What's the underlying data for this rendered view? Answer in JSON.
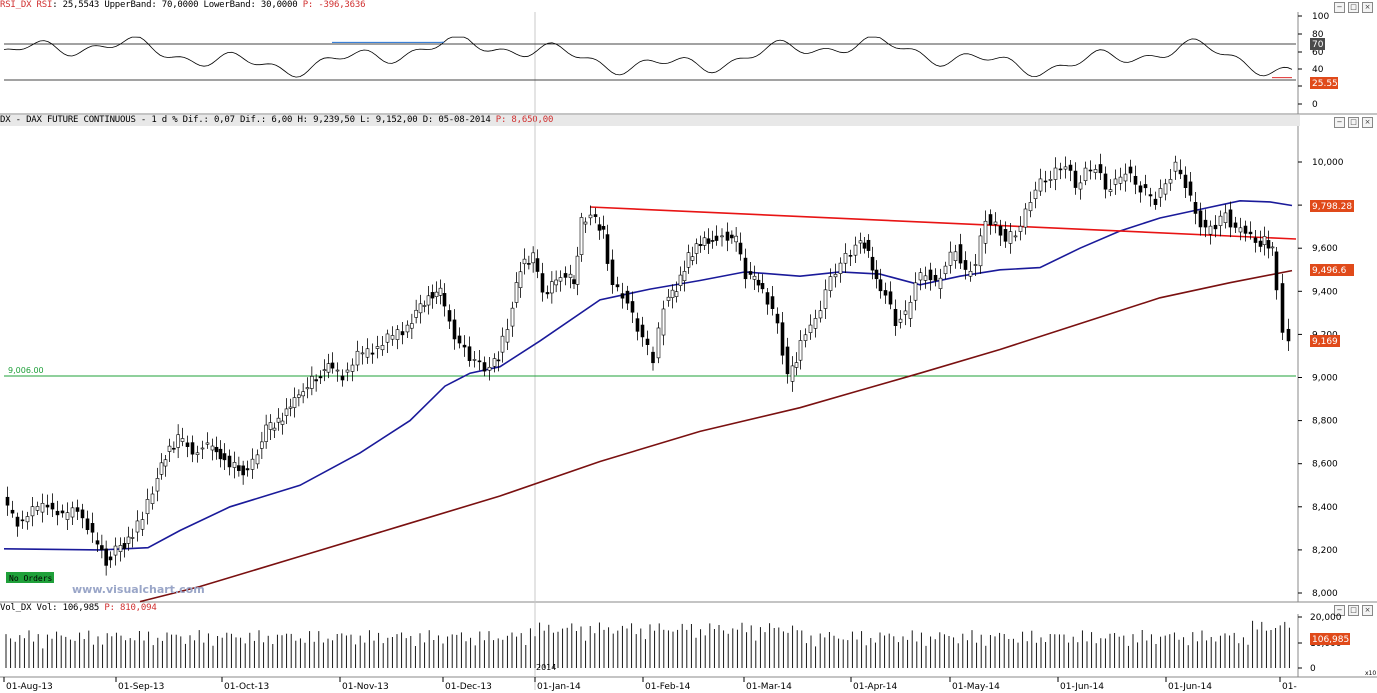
{
  "rsi_panel": {
    "header_name": "RSI_DX RSI",
    "header_values": ": 25,5543 UpperBand: 70,0000 LowerBand: 30,0000",
    "header_p": "P: -396,3636",
    "current_value_label": "25.55",
    "upper_band_label": "70"
  },
  "price_panel": {
    "header": "DX - DAX FUTURE CONTINUOUS -  1 d % Dif.: 0,07 Dif.: 6,00 H: 9,239,50 L: 9,152,00 D: 05-08-2014",
    "header_p": "P: 8,650,00",
    "support_label": "9,006.00",
    "no_orders": "No Orders",
    "watermark": "www.visualchart.com",
    "label_blue": "9,798.28",
    "label_dark": "9,496.6",
    "label_last": "9,169"
  },
  "volume_panel": {
    "header": "Vol_DX Vol: 106,985",
    "header_p": "P: 810,094",
    "current_value_label": "106,985",
    "year_marker": "2014",
    "multiplier": "x10"
  },
  "chart_data": [
    {
      "type": "line",
      "name": "RSI",
      "yticks": [
        "100",
        "80",
        "60",
        "40",
        "20",
        "0"
      ],
      "ylim": [
        0,
        100
      ],
      "upper_band": 70,
      "lower_band": 30,
      "last": 25.55
    },
    {
      "type": "candlestick",
      "name": "DX - DAX FUTURE CONTINUOUS",
      "yticks": [
        "10,000",
        "9,800",
        "9,600",
        "9,400",
        "9,200",
        "9,000",
        "8,800",
        "8,600",
        "8,400",
        "8,200",
        "8,000"
      ],
      "ylim": [
        7980,
        10060
      ],
      "support": 9006,
      "moving_averages_last": [
        9798.28,
        9496.6
      ],
      "last": 9169,
      "high": 9239.5,
      "low": 9152.0
    },
    {
      "type": "bar",
      "name": "Vol_DX",
      "yticks": [
        "20,000",
        "10,000",
        "0"
      ],
      "last": 106985
    }
  ],
  "x_axis": {
    "dates": [
      "01-Aug-13",
      "01-Sep-13",
      "01-Oct-13",
      "01-Nov-13",
      "01-Dec-13",
      "01-Jan-14",
      "01-Feb-14",
      "01-Mar-14",
      "01-Apr-14",
      "01-May-14",
      "01-Jun-14",
      "01-Jun-14",
      "01-"
    ]
  },
  "colors": {
    "rsi_line": "#000000",
    "rsi_overbought": "#1f6fd1",
    "rsi_oversold": "#e03030",
    "ma_blue": "#1a1a9a",
    "ma_dark": "#7a1010",
    "trendline": "#e81414",
    "support": "#1fa03a",
    "label_red_bg": "#e04a1a",
    "no_orders_bg": "#1fa03a"
  }
}
